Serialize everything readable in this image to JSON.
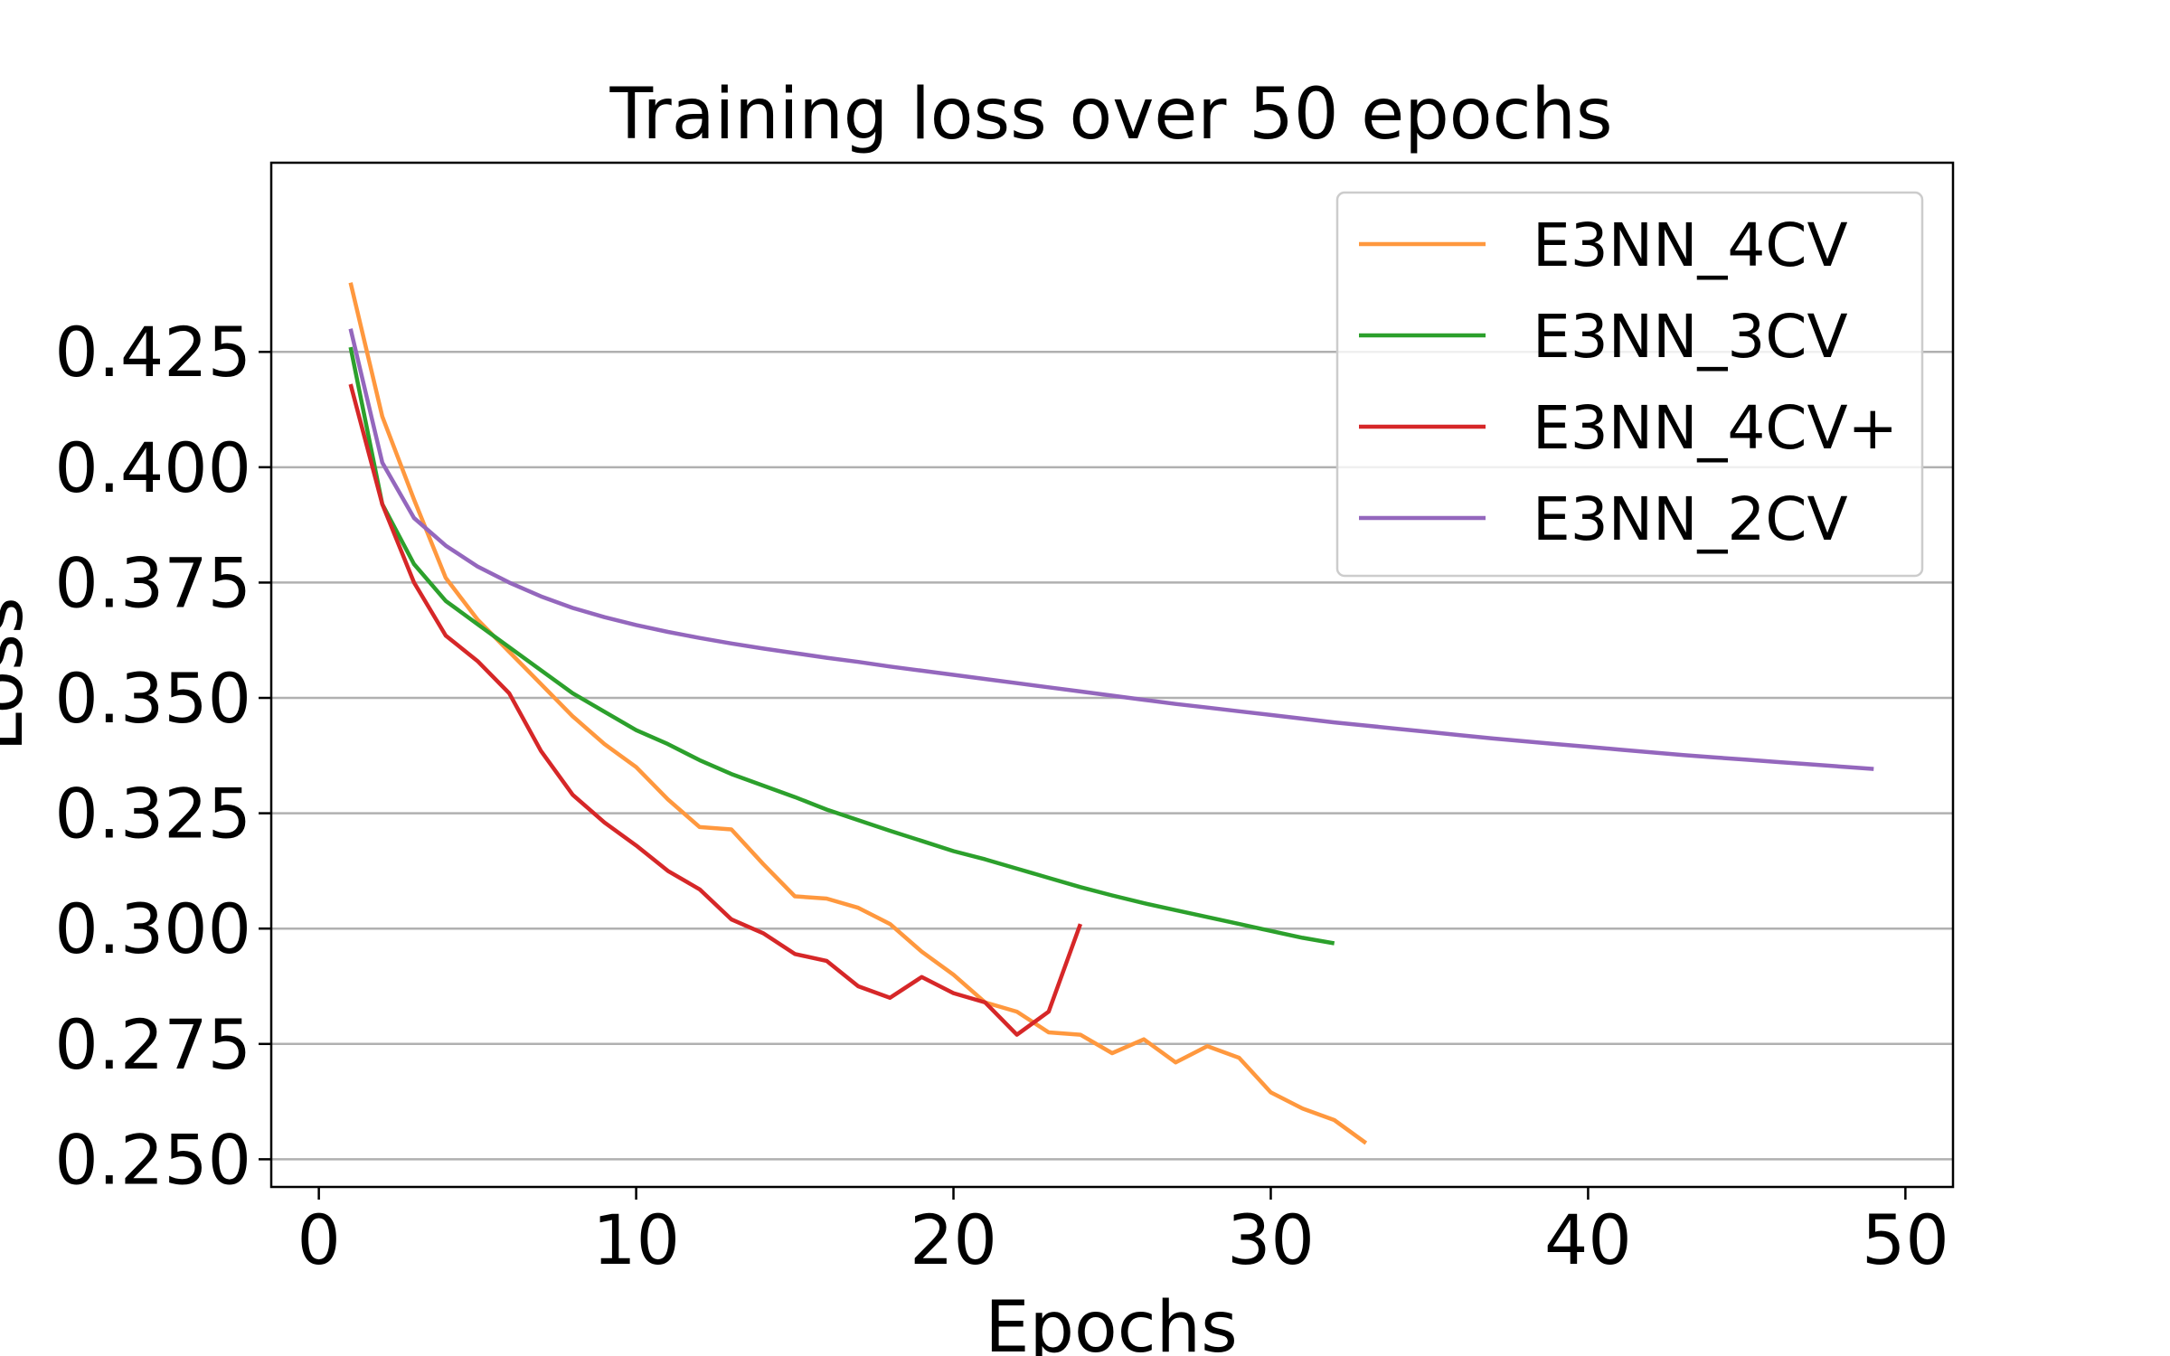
{
  "chart_data": {
    "type": "line",
    "title": "Training loss over 50 epochs",
    "xlabel": "Epochs",
    "ylabel": "Loss",
    "xlim": [
      -1.5,
      51.5
    ],
    "ylim": [
      0.244,
      0.466
    ],
    "xticks": [
      0,
      10,
      20,
      30,
      40,
      50
    ],
    "xtick_labels": [
      "0",
      "10",
      "20",
      "30",
      "40",
      "50"
    ],
    "yticks": [
      0.25,
      0.275,
      0.3,
      0.325,
      0.35,
      0.375,
      0.4,
      0.425
    ],
    "ytick_labels": [
      "0.250",
      "0.275",
      "0.300",
      "0.325",
      "0.350",
      "0.375",
      "0.400",
      "0.425"
    ],
    "grid": "horizontal",
    "legend_position": "top-right",
    "series": [
      {
        "name": "E3NN_4CV",
        "color": "#ff983e",
        "x": [
          1,
          2,
          3,
          4,
          5,
          6,
          7,
          8,
          9,
          10,
          11,
          12,
          13,
          14,
          15,
          16,
          17,
          18,
          19,
          20,
          21,
          22,
          23,
          24,
          25,
          26,
          27,
          28,
          29,
          30,
          31,
          32,
          33
        ],
        "values": [
          0.44,
          0.411,
          0.393,
          0.376,
          0.367,
          0.36,
          0.353,
          0.346,
          0.34,
          0.335,
          0.328,
          0.322,
          0.3215,
          0.314,
          0.307,
          0.3065,
          0.3045,
          0.301,
          0.295,
          0.29,
          0.284,
          0.282,
          0.2775,
          0.277,
          0.273,
          0.276,
          0.271,
          0.2745,
          0.272,
          0.2645,
          0.261,
          0.2585,
          0.2535
        ]
      },
      {
        "name": "E3NN_3CV",
        "color": "#2ca02c",
        "x": [
          1,
          2,
          3,
          4,
          5,
          6,
          7,
          8,
          9,
          10,
          11,
          12,
          13,
          14,
          15,
          16,
          17,
          18,
          19,
          20,
          21,
          22,
          23,
          24,
          25,
          26,
          27,
          28,
          29,
          30,
          31,
          32
        ],
        "values": [
          0.426,
          0.392,
          0.379,
          0.371,
          0.366,
          0.361,
          0.356,
          0.351,
          0.347,
          0.343,
          0.34,
          0.3365,
          0.3335,
          0.331,
          0.3285,
          0.3258,
          0.3235,
          0.3212,
          0.319,
          0.3168,
          0.315,
          0.313,
          0.311,
          0.309,
          0.3072,
          0.3055,
          0.304,
          0.3025,
          0.301,
          0.2995,
          0.298,
          0.2968
        ]
      },
      {
        "name": "E3NN_4CV+",
        "color": "#d62728",
        "x": [
          1,
          2,
          3,
          4,
          5,
          6,
          7,
          8,
          9,
          10,
          11,
          12,
          13,
          14,
          15,
          16,
          17,
          18,
          19,
          20,
          21,
          22,
          23,
          24
        ],
        "values": [
          0.418,
          0.392,
          0.375,
          0.3635,
          0.358,
          0.351,
          0.3385,
          0.329,
          0.323,
          0.318,
          0.3125,
          0.3085,
          0.302,
          0.299,
          0.2945,
          0.293,
          0.2875,
          0.285,
          0.2895,
          0.286,
          0.284,
          0.277,
          0.282,
          0.301
        ]
      },
      {
        "name": "E3NN_2CV",
        "color": "#9467bd",
        "x": [
          1,
          2,
          3,
          4,
          5,
          6,
          7,
          8,
          9,
          10,
          11,
          12,
          13,
          14,
          15,
          16,
          17,
          18,
          19,
          20,
          21,
          22,
          23,
          24,
          25,
          26,
          27,
          28,
          29,
          30,
          31,
          32,
          33,
          34,
          35,
          36,
          37,
          38,
          39,
          40,
          41,
          42,
          43,
          44,
          45,
          46,
          47,
          48,
          49
        ],
        "values": [
          0.43,
          0.401,
          0.389,
          0.383,
          0.3785,
          0.375,
          0.372,
          0.3695,
          0.3675,
          0.3658,
          0.3643,
          0.363,
          0.3618,
          0.3607,
          0.3597,
          0.3587,
          0.3578,
          0.3568,
          0.3559,
          0.355,
          0.3541,
          0.3532,
          0.3523,
          0.3514,
          0.3505,
          0.3496,
          0.3487,
          0.3479,
          0.3471,
          0.3463,
          0.3455,
          0.3447,
          0.344,
          0.3433,
          0.3426,
          0.3419,
          0.3412,
          0.3406,
          0.34,
          0.3394,
          0.3388,
          0.3382,
          0.3376,
          0.3371,
          0.3366,
          0.3361,
          0.3356,
          0.3351,
          0.3346
        ]
      }
    ]
  }
}
